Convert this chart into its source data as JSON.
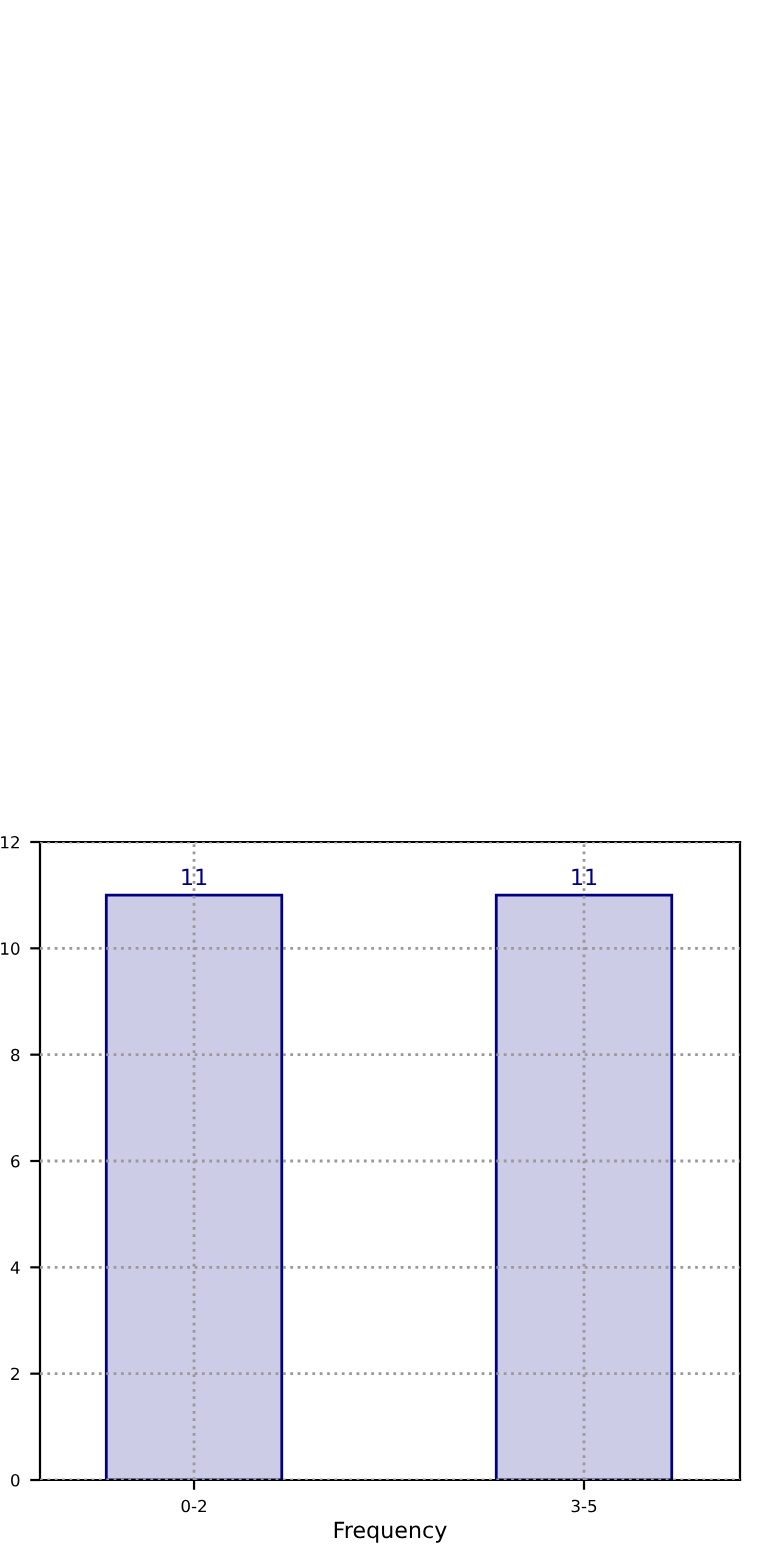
{
  "chart_data": {
    "type": "bar",
    "xlabel": "Frequency",
    "categories": [
      "0-2",
      "3-5"
    ],
    "series": [
      {
        "color": "#ccccE6",
        "values": [
          11,
          11
        ]
      }
    ],
    "ylim": [
      0,
      12
    ],
    "yticks": [
      0,
      2,
      4,
      6,
      8,
      10,
      12
    ],
    "grid": true,
    "data_labels": true
  }
}
